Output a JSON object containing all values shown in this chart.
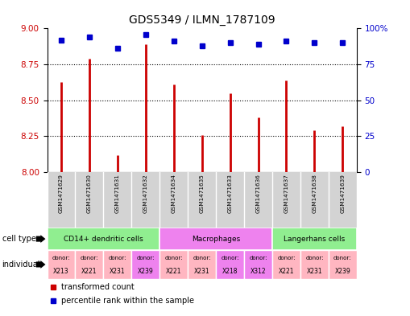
{
  "title": "GDS5349 / ILMN_1787109",
  "samples": [
    "GSM1471629",
    "GSM1471630",
    "GSM1471631",
    "GSM1471632",
    "GSM1471634",
    "GSM1471635",
    "GSM1471633",
    "GSM1471636",
    "GSM1471637",
    "GSM1471638",
    "GSM1471639"
  ],
  "red_values": [
    8.63,
    8.79,
    8.12,
    8.89,
    8.61,
    8.26,
    8.55,
    8.38,
    8.64,
    8.29,
    8.32
  ],
  "blue_values": [
    92,
    94,
    86,
    96,
    91,
    88,
    90,
    89,
    91,
    90,
    90
  ],
  "ylim_left": [
    8.0,
    9.0
  ],
  "ylim_right": [
    0,
    100
  ],
  "yticks_left": [
    8.0,
    8.25,
    8.5,
    8.75,
    9.0
  ],
  "yticks_right": [
    0,
    25,
    50,
    75,
    100
  ],
  "ytick_labels_right": [
    "0",
    "25",
    "50",
    "75",
    "100%"
  ],
  "cell_type_groups": [
    {
      "label": "CD14+ dendritic cells",
      "start": 0,
      "end": 3,
      "color": "#90EE90"
    },
    {
      "label": "Macrophages",
      "start": 4,
      "end": 7,
      "color": "#EE82EE"
    },
    {
      "label": "Langerhans cells",
      "start": 8,
      "end": 10,
      "color": "#90EE90"
    }
  ],
  "individuals": [
    {
      "donor": "X213",
      "col": 0,
      "color": "#FFB6C1"
    },
    {
      "donor": "X221",
      "col": 1,
      "color": "#FFB6C1"
    },
    {
      "donor": "X231",
      "col": 2,
      "color": "#FFB6C1"
    },
    {
      "donor": "X239",
      "col": 3,
      "color": "#EE82EE"
    },
    {
      "donor": "X221",
      "col": 4,
      "color": "#FFB6C1"
    },
    {
      "donor": "X231",
      "col": 5,
      "color": "#FFB6C1"
    },
    {
      "donor": "X218",
      "col": 6,
      "color": "#EE82EE"
    },
    {
      "donor": "X312",
      "col": 7,
      "color": "#EE82EE"
    },
    {
      "donor": "X221",
      "col": 8,
      "color": "#FFB6C1"
    },
    {
      "donor": "X231",
      "col": 9,
      "color": "#FFB6C1"
    },
    {
      "donor": "X239",
      "col": 10,
      "color": "#FFB6C1"
    }
  ],
  "red_color": "#CC0000",
  "blue_color": "#0000CC",
  "bar_base": 8.0,
  "bg_color": "#FFFFFF",
  "sample_bg_color": "#D3D3D3",
  "grid_dotted_vals": [
    8.25,
    8.5,
    8.75
  ],
  "title_fontsize": 10,
  "left_label_cell_type": "cell type",
  "left_label_individual": "individual"
}
